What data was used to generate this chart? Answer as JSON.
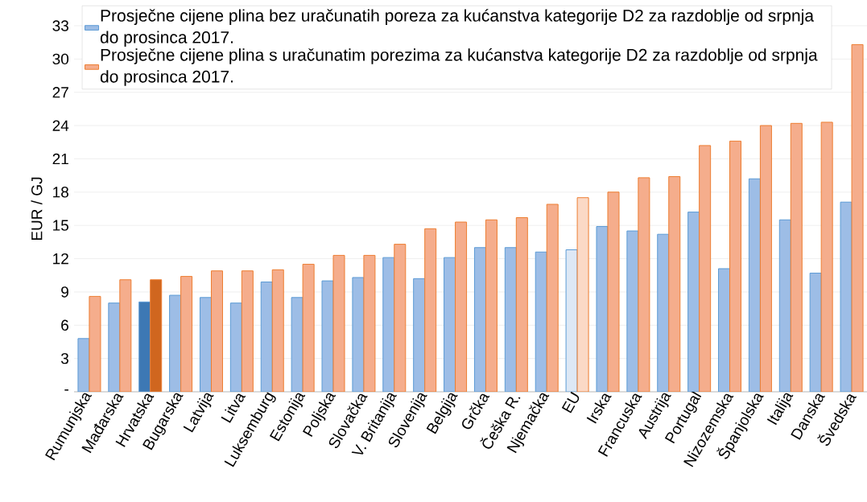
{
  "chart_data": {
    "type": "bar",
    "ylabel": "EUR / GJ",
    "categories": [
      "Rumunjska",
      "Mađarska",
      "Hrvatska",
      "Bugarska",
      "Latvija",
      "Litva",
      "Luksemburg",
      "Estonija",
      "Poljska",
      "Slovačka",
      "V. Britanija",
      "Slovenija",
      "Belgija",
      "Grčka",
      "Češka R.",
      "Njemačka",
      "EU",
      "Irska",
      "Francuska",
      "Austrija",
      "Portugal",
      "Nizozemska",
      "Španjolska",
      "Italija",
      "Danska",
      "Švedska"
    ],
    "series": [
      {
        "name": "Prosječne cijene plina bez uračunatih poreza za kućanstva kategorije D2 za razdoblje od srpnja do prosinca 2017.",
        "color": "#5b9bd5",
        "values": [
          4.8,
          8.0,
          8.1,
          8.7,
          8.5,
          8.0,
          9.9,
          8.5,
          10.0,
          10.3,
          12.1,
          10.2,
          12.1,
          13.0,
          13.0,
          12.6,
          12.8,
          14.9,
          14.5,
          14.2,
          16.2,
          11.1,
          19.2,
          15.5,
          10.7,
          17.1
        ],
        "colors": [
          "#9dbde6",
          "#9dbde6",
          "#3d78b4",
          "#9dbde6",
          "#9dbde6",
          "#9dbde6",
          "#9dbde6",
          "#9dbde6",
          "#9dbde6",
          "#9dbde6",
          "#9dbde6",
          "#9dbde6",
          "#9dbde6",
          "#9dbde6",
          "#9dbde6",
          "#9dbde6",
          "#dde8f5",
          "#9dbde6",
          "#9dbde6",
          "#9dbde6",
          "#9dbde6",
          "#9dbde6",
          "#9dbde6",
          "#9dbde6",
          "#9dbde6",
          "#9dbde6"
        ]
      },
      {
        "name": "Prosječne cijene plina s uračunatim porezima za kućanstva kategorije D2 za razdoblje od srpnja do prosinca 2017.",
        "color": "#ed7d31",
        "values": [
          8.6,
          10.1,
          10.1,
          10.4,
          10.9,
          10.9,
          11.0,
          11.5,
          12.3,
          12.3,
          13.3,
          14.7,
          15.3,
          15.5,
          15.7,
          16.9,
          17.5,
          18.0,
          19.3,
          19.4,
          22.2,
          22.6,
          24.0,
          24.2,
          24.3,
          31.3
        ],
        "colors": [
          "#f5ad8c",
          "#f5ad8c",
          "#d0661f",
          "#f5ad8c",
          "#f5ad8c",
          "#f5ad8c",
          "#f5ad8c",
          "#f5ad8c",
          "#f5ad8c",
          "#f5ad8c",
          "#f5ad8c",
          "#f5ad8c",
          "#f5ad8c",
          "#f5ad8c",
          "#f5ad8c",
          "#f5ad8c",
          "#fbd9c6",
          "#f5ad8c",
          "#f5ad8c",
          "#f5ad8c",
          "#f5ad8c",
          "#f5ad8c",
          "#f5ad8c",
          "#f5ad8c",
          "#f5ad8c",
          "#f5ad8c"
        ]
      }
    ],
    "ylim": [
      0,
      33
    ],
    "yticks": [
      {
        "value": 0,
        "label": "-"
      },
      3,
      6,
      9,
      12,
      15,
      18,
      21,
      24,
      27,
      30,
      33
    ],
    "grid": "y",
    "legend": "top"
  }
}
